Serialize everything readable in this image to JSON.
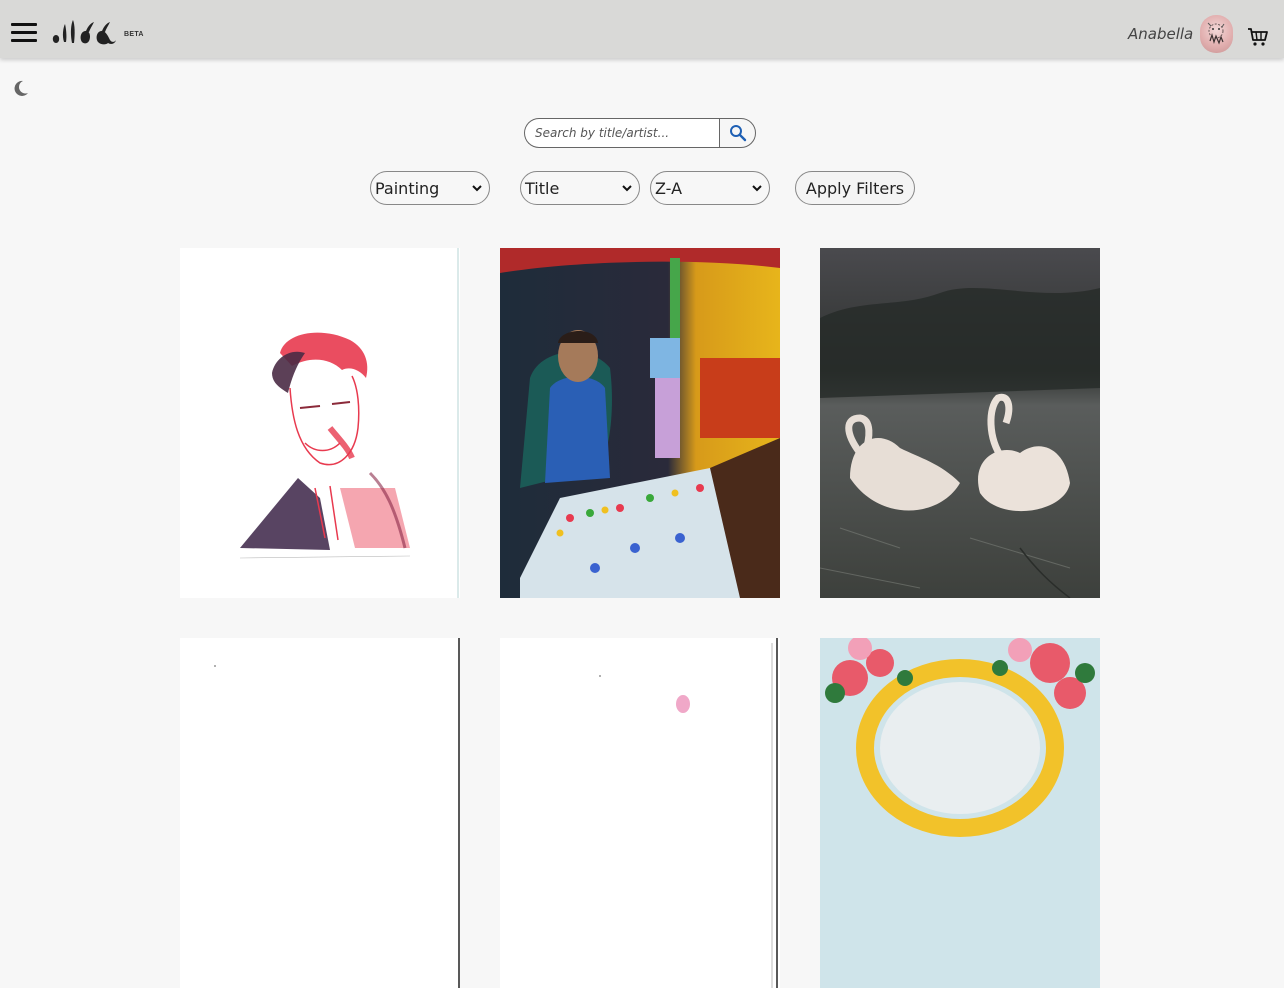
{
  "header": {
    "beta_label": "BETA",
    "username": "Anabella",
    "icons": [
      "hamburger-menu-icon",
      "logo",
      "avatar",
      "cart-icon"
    ]
  },
  "theme_toggle_icon": "moon-icon",
  "search": {
    "placeholder": "Search by title/artist...",
    "value": "",
    "button_icon": "search-icon"
  },
  "filters": {
    "category": "Painting",
    "sort_by": "Title",
    "order": "Z-A",
    "apply_label": "Apply Filters"
  },
  "colors": {
    "header_bg": "#d9d9d7",
    "page_bg": "#f7f7f7",
    "search_icon": "#1d5fb4"
  },
  "artworks": [
    {
      "subject": "red-ink-portrait-sketch"
    },
    {
      "subject": "street-vendor-night-painting"
    },
    {
      "subject": "two-swans-painting"
    },
    {
      "subject": "white-sketch-partial"
    },
    {
      "subject": "white-sketch-pink-figure-partial"
    },
    {
      "subject": "floral-mirror-painting-partial"
    }
  ]
}
